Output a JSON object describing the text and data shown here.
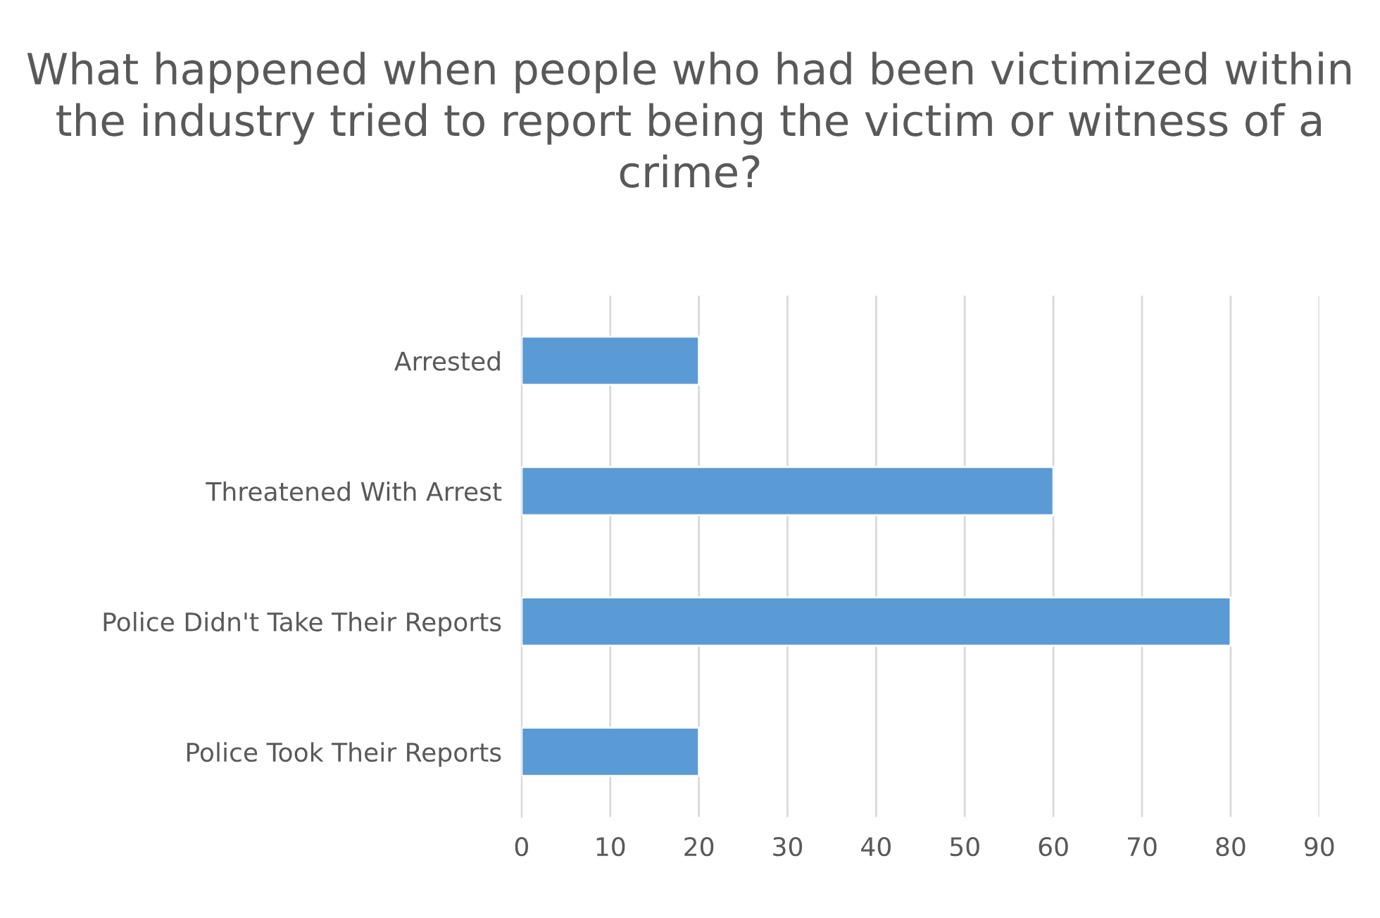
{
  "chart_data": {
    "type": "bar",
    "orientation": "horizontal",
    "title": "What happened when people who had been victimized within the industry tried to report being the victim or witness of a crime?",
    "categories": [
      "Arrested",
      "Threatened With Arrest",
      "Police Didn't Take Their Reports",
      "Police Took Their Reports"
    ],
    "values": [
      20,
      60,
      80,
      20
    ],
    "color": "#5b9bd5",
    "xlim": [
      0,
      90
    ],
    "xticks": [
      0,
      10,
      20,
      30,
      40,
      50,
      60,
      70,
      80,
      90
    ],
    "grid": "x",
    "legend": false
  }
}
